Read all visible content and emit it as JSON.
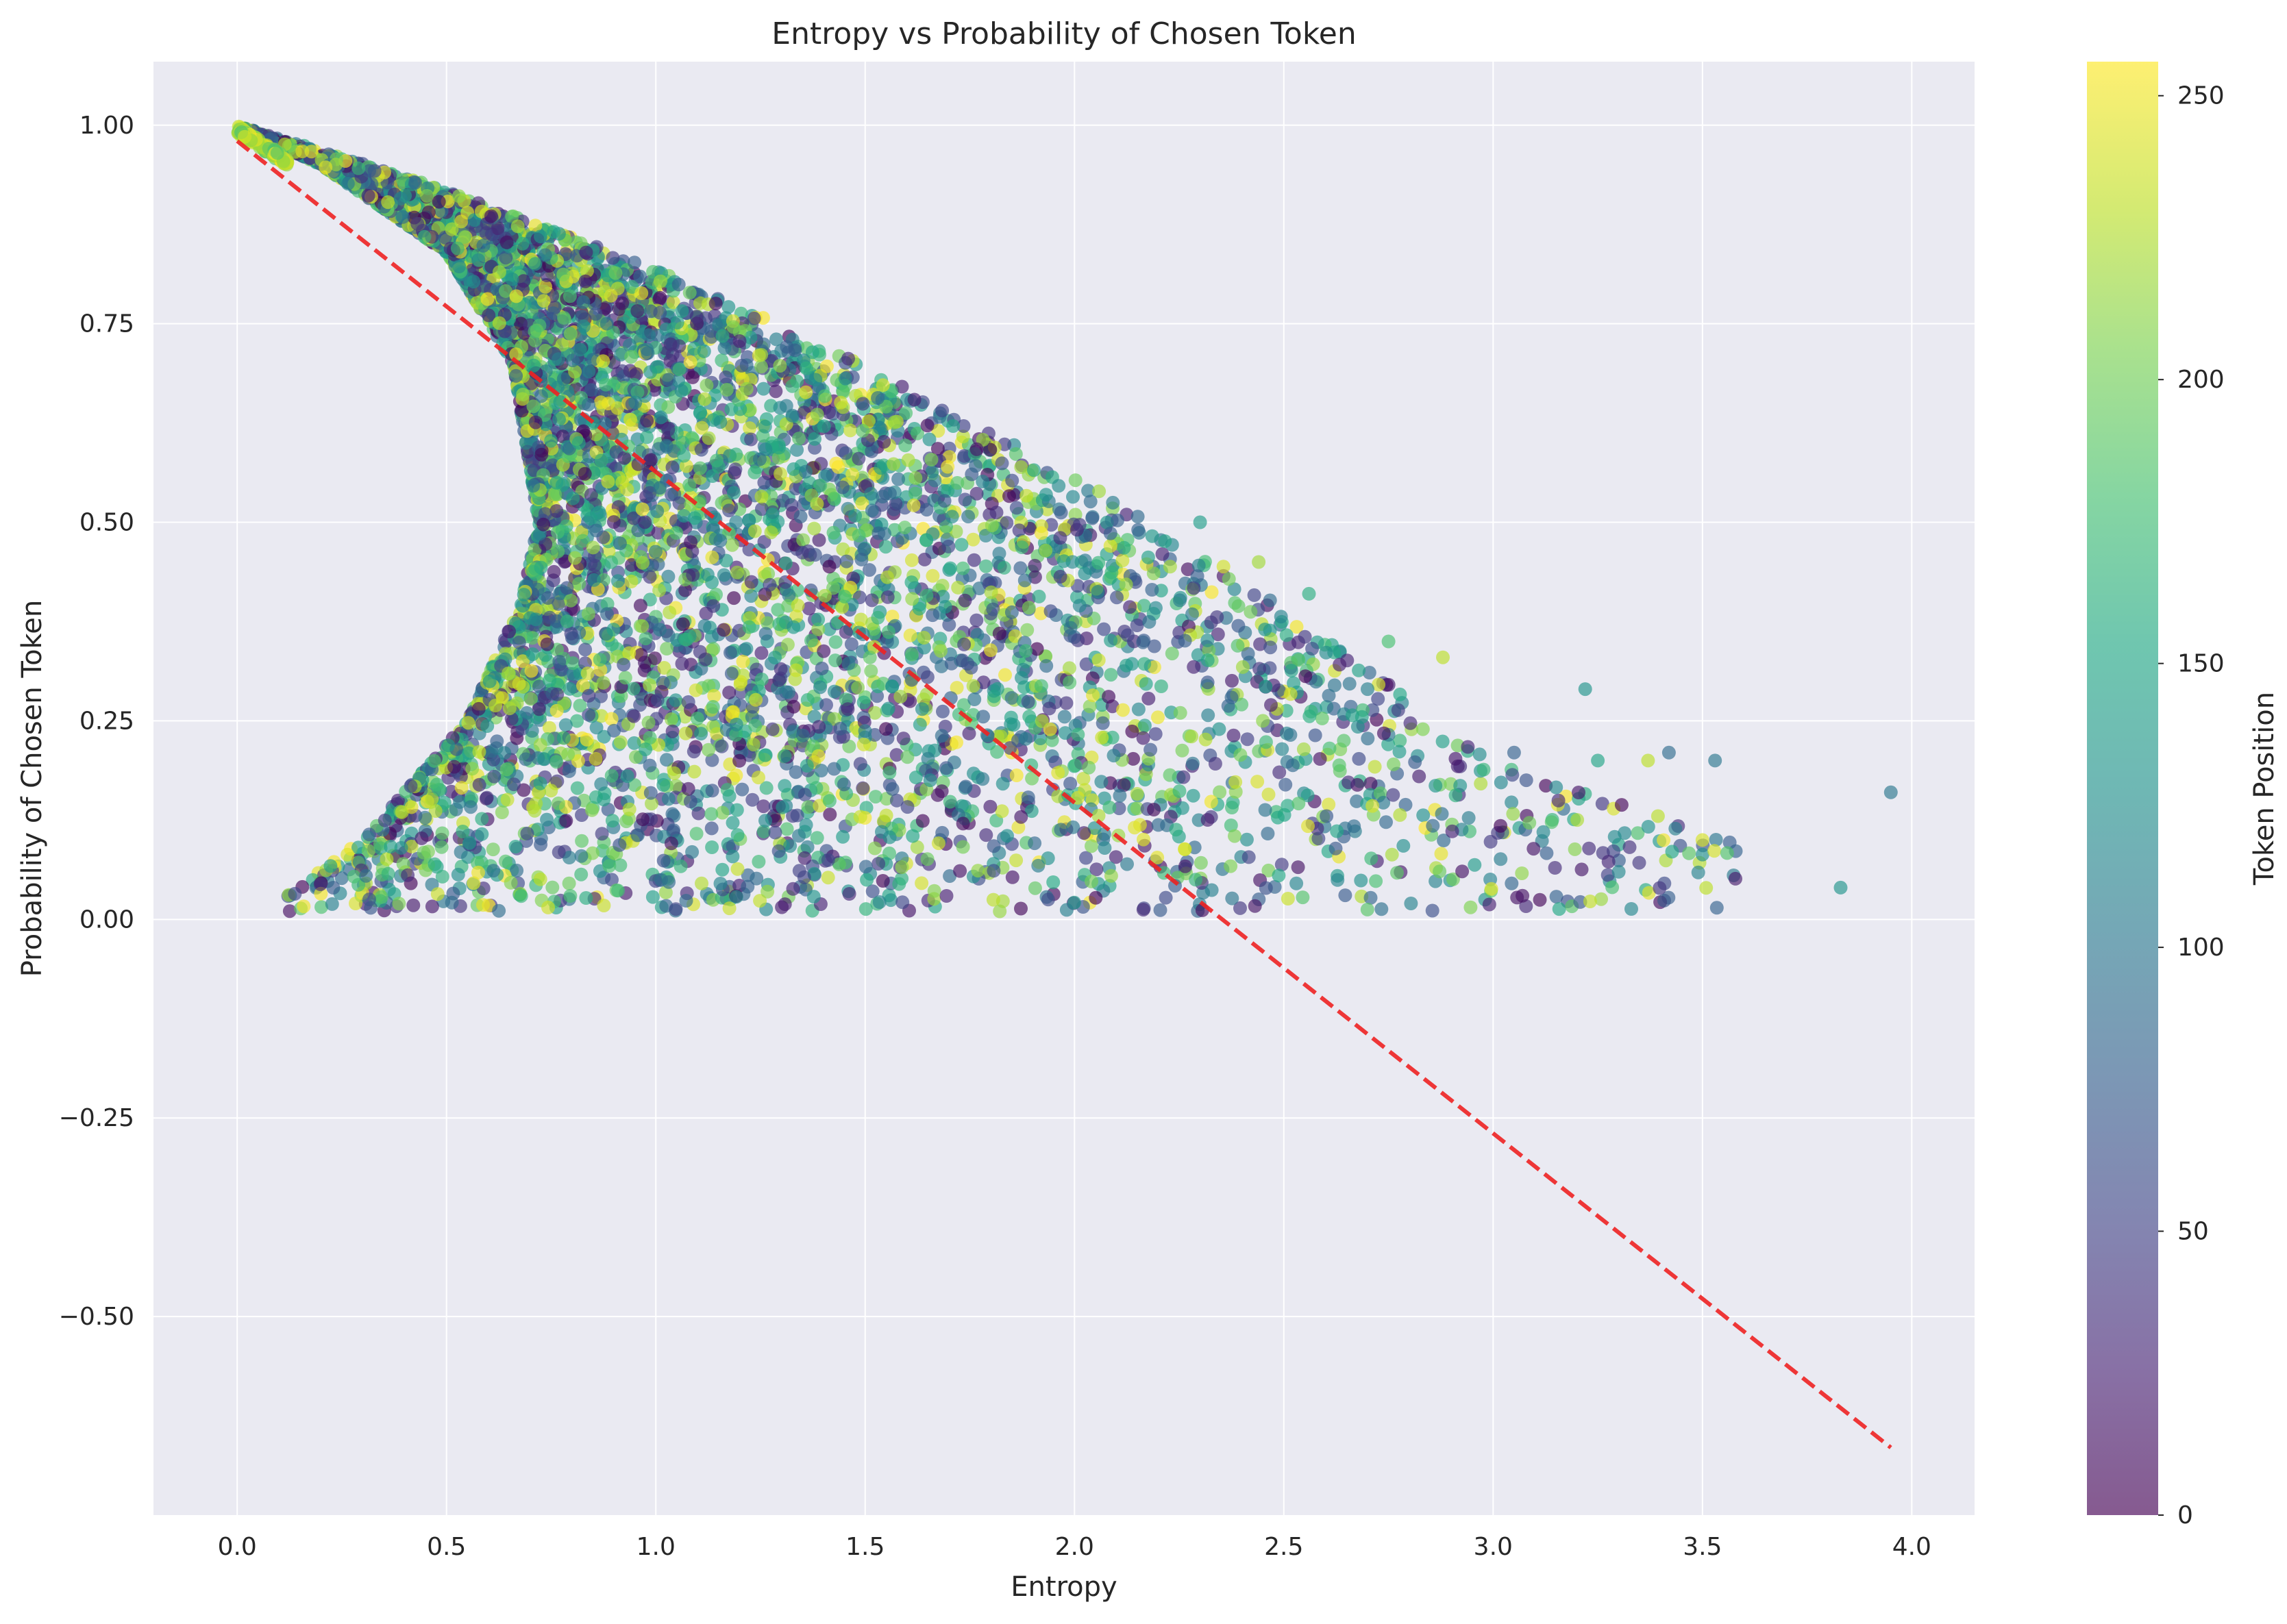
{
  "chart_data": {
    "type": "scatter",
    "title": "Entropy vs Probability of Chosen Token",
    "xlabel": "Entropy",
    "ylabel": "Probability of Chosen Token",
    "xlim": [
      -0.2,
      4.15
    ],
    "ylim": [
      -0.75,
      1.08
    ],
    "x_ticks": [
      0.0,
      0.5,
      1.0,
      1.5,
      2.0,
      2.5,
      3.0,
      3.5,
      4.0
    ],
    "x_tick_labels": [
      "0.0",
      "0.5",
      "1.0",
      "1.5",
      "2.0",
      "2.5",
      "3.0",
      "3.5",
      "4.0"
    ],
    "y_ticks": [
      1.0,
      0.75,
      0.5,
      0.25,
      0.0,
      -0.25,
      -0.5
    ],
    "y_tick_labels": [
      "1.00",
      "0.75",
      "0.50",
      "0.25",
      "0.00",
      "−0.25",
      "−0.50"
    ],
    "grid": true,
    "background_color": "#eaeaf2",
    "colormap": "viridis",
    "marker_alpha": 0.65,
    "colorbar": {
      "label": "Token Position",
      "min": 0,
      "max": 256,
      "ticks": [
        0,
        50,
        100,
        150,
        200,
        250
      ],
      "tick_labels": [
        "0",
        "50",
        "100",
        "150",
        "200",
        "250"
      ]
    },
    "point_cloud": {
      "approx_count": 6000,
      "lower_envelope": [
        [
          0.07,
          0.01
        ],
        [
          0.3,
          0.1
        ],
        [
          0.55,
          0.25
        ],
        [
          0.68,
          0.4
        ],
        [
          0.72,
          0.5
        ],
        [
          0.66,
          0.7
        ],
        [
          0.5,
          0.84
        ],
        [
          0.2,
          0.95
        ],
        [
          0.0,
          1.0
        ]
      ],
      "upper_envelope": [
        [
          0.0,
          1.0
        ],
        [
          0.5,
          0.92
        ],
        [
          1.0,
          0.82
        ],
        [
          1.5,
          0.7
        ],
        [
          2.0,
          0.56
        ],
        [
          2.5,
          0.4
        ],
        [
          3.0,
          0.2
        ],
        [
          3.5,
          0.12
        ]
      ],
      "outliers": [
        {
          "x": 3.22,
          "y": 0.29,
          "c": 130
        },
        {
          "x": 3.42,
          "y": 0.21,
          "c": 90
        },
        {
          "x": 3.53,
          "y": 0.2,
          "c": 100
        },
        {
          "x": 3.5,
          "y": 0.1,
          "c": 240
        },
        {
          "x": 3.37,
          "y": 0.2,
          "c": 230
        },
        {
          "x": 3.83,
          "y": 0.04,
          "c": 130
        },
        {
          "x": 3.95,
          "y": 0.16,
          "c": 100
        },
        {
          "x": 3.3,
          "y": 0.06,
          "c": 120
        },
        {
          "x": 3.25,
          "y": 0.2,
          "c": 150
        },
        {
          "x": 3.05,
          "y": 0.21,
          "c": 80
        },
        {
          "x": 3.12,
          "y": 0.11,
          "c": 120
        },
        {
          "x": 2.88,
          "y": 0.33,
          "c": 230
        },
        {
          "x": 2.75,
          "y": 0.35,
          "c": 180
        },
        {
          "x": 2.7,
          "y": 0.29,
          "c": 110
        },
        {
          "x": 2.3,
          "y": 0.5,
          "c": 140
        },
        {
          "x": 2.44,
          "y": 0.45,
          "c": 220
        },
        {
          "x": 2.56,
          "y": 0.41,
          "c": 160
        }
      ]
    },
    "series": [
      {
        "kind": "trend-line",
        "color": "#ee2222",
        "x": [
          0.0,
          3.95
        ],
        "y": [
          0.98,
          -0.665
        ]
      }
    ]
  }
}
